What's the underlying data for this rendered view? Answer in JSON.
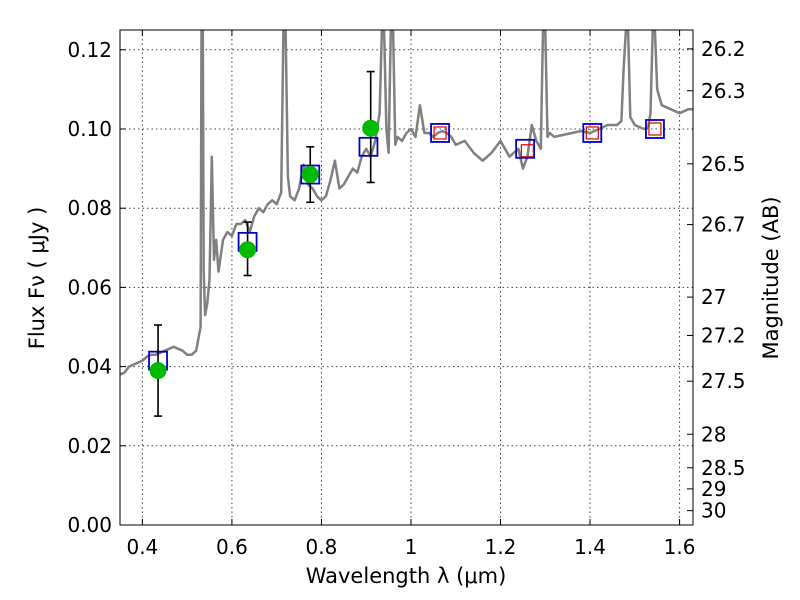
{
  "chart_data": {
    "type": "line",
    "xlabel": "Wavelength  λ (μm)",
    "ylabel": "Flux  Fν  ( μJy )",
    "y2label": "Magnitude (AB)",
    "xlim": [
      0.35,
      1.63
    ],
    "ylim": [
      0.0,
      0.125
    ],
    "grid": true,
    "x_ticks": [
      0.4,
      0.6,
      0.8,
      1.0,
      1.2,
      1.4,
      1.6
    ],
    "x_tick_labels": [
      "0.4",
      "0.6",
      "0.8",
      "1",
      "1.2",
      "1.4",
      "1.6"
    ],
    "y_ticks": [
      0.0,
      0.02,
      0.04,
      0.06,
      0.08,
      0.1,
      0.12
    ],
    "y_tick_labels": [
      "0.00",
      "0.02",
      "0.04",
      "0.06",
      "0.08",
      "0.10",
      "0.12"
    ],
    "y2_ticks": [
      26.2,
      26.3,
      26.5,
      26.7,
      27,
      27.2,
      27.5,
      28,
      28.5,
      29,
      30
    ],
    "y2_tick_labels": [
      "26.2",
      "26.3",
      "26.5",
      "26.7",
      "27",
      "27.2",
      "27.5",
      "28",
      "28.5",
      "29",
      "30"
    ],
    "colors": {
      "model": "#808080",
      "observed": "#00bb00",
      "model_box": "#0000cc",
      "synthetic_box": "#dd0000",
      "errorbar": "#000000"
    },
    "series": [
      {
        "style": "line",
        "x": [
          0.35,
          0.36,
          0.37,
          0.38,
          0.39,
          0.4,
          0.41,
          0.42,
          0.43,
          0.44,
          0.45,
          0.46,
          0.47,
          0.48,
          0.49,
          0.5,
          0.51,
          0.52,
          0.53,
          0.532,
          0.535,
          0.537,
          0.54,
          0.545,
          0.55,
          0.555,
          0.56,
          0.565,
          0.57,
          0.58,
          0.59,
          0.6,
          0.61,
          0.62,
          0.63,
          0.64,
          0.65,
          0.66,
          0.67,
          0.68,
          0.69,
          0.7,
          0.71,
          0.715,
          0.72,
          0.725,
          0.73,
          0.74,
          0.75,
          0.76,
          0.77,
          0.78,
          0.79,
          0.8,
          0.81,
          0.82,
          0.83,
          0.84,
          0.85,
          0.86,
          0.87,
          0.88,
          0.89,
          0.9,
          0.91,
          0.92,
          0.93,
          0.935,
          0.94,
          0.945,
          0.95,
          0.955,
          0.96,
          0.965,
          0.97,
          0.98,
          0.99,
          1.0,
          1.01,
          1.02,
          1.03,
          1.04,
          1.05,
          1.06,
          1.07,
          1.08,
          1.09,
          1.1,
          1.12,
          1.14,
          1.16,
          1.18,
          1.2,
          1.22,
          1.24,
          1.25,
          1.26,
          1.27,
          1.28,
          1.29,
          1.295,
          1.3,
          1.305,
          1.31,
          1.32,
          1.34,
          1.36,
          1.38,
          1.4,
          1.42,
          1.44,
          1.46,
          1.47,
          1.475,
          1.48,
          1.485,
          1.49,
          1.5,
          1.52,
          1.53,
          1.535,
          1.54,
          1.545,
          1.55,
          1.56,
          1.58,
          1.6,
          1.62,
          1.63
        ],
        "values": [
          0.038,
          0.0385,
          0.04,
          0.0405,
          0.041,
          0.0415,
          0.0425,
          0.043,
          0.043,
          0.0435,
          0.044,
          0.0445,
          0.045,
          0.0445,
          0.044,
          0.043,
          0.043,
          0.044,
          0.05,
          0.125,
          0.125,
          0.064,
          0.053,
          0.056,
          0.062,
          0.093,
          0.067,
          0.072,
          0.064,
          0.072,
          0.074,
          0.073,
          0.076,
          0.076,
          0.077,
          0.074,
          0.078,
          0.08,
          0.079,
          0.081,
          0.082,
          0.081,
          0.084,
          0.125,
          0.125,
          0.088,
          0.083,
          0.082,
          0.085,
          0.091,
          0.086,
          0.085,
          0.083,
          0.082,
          0.083,
          0.087,
          0.092,
          0.085,
          0.086,
          0.088,
          0.09,
          0.089,
          0.093,
          0.095,
          0.093,
          0.097,
          0.104,
          0.125,
          0.125,
          0.1,
          0.094,
          0.125,
          0.125,
          0.096,
          0.098,
          0.097,
          0.099,
          0.1,
          0.098,
          0.106,
          0.099,
          0.099,
          0.098,
          0.099,
          0.0995,
          0.099,
          0.098,
          0.096,
          0.097,
          0.094,
          0.092,
          0.094,
          0.097,
          0.093,
          0.095,
          0.09,
          0.093,
          0.101,
          0.097,
          0.095,
          0.125,
          0.125,
          0.098,
          0.099,
          0.098,
          0.0985,
          0.099,
          0.0995,
          0.099,
          0.1,
          0.101,
          0.101,
          0.102,
          0.115,
          0.125,
          0.125,
          0.103,
          0.101,
          0.1,
          0.1005,
          0.104,
          0.125,
          0.125,
          0.11,
          0.106,
          0.105,
          0.104,
          0.105,
          0.105
        ]
      },
      {
        "style": "square-open",
        "color_key": "model_box",
        "x": [
          0.435,
          0.635,
          0.775,
          0.905,
          1.065,
          1.255,
          1.405,
          1.545
        ],
        "values": [
          0.0415,
          0.0715,
          0.0885,
          0.0955,
          0.099,
          0.095,
          0.099,
          0.1
        ]
      },
      {
        "style": "square-open-small",
        "color_key": "synthetic_box",
        "x": [
          1.065,
          1.26,
          1.405,
          1.545
        ],
        "values": [
          0.099,
          0.0945,
          0.099,
          0.1
        ]
      },
      {
        "style": "circle",
        "color_key": "observed",
        "x": [
          0.435,
          0.635,
          0.775,
          0.91
        ],
        "values": [
          0.039,
          0.0695,
          0.0885,
          0.1002
        ],
        "err_low": [
          0.0275,
          0.063,
          0.0815,
          0.0865
        ],
        "err_high": [
          0.0505,
          0.0765,
          0.0955,
          0.1145
        ]
      }
    ]
  }
}
